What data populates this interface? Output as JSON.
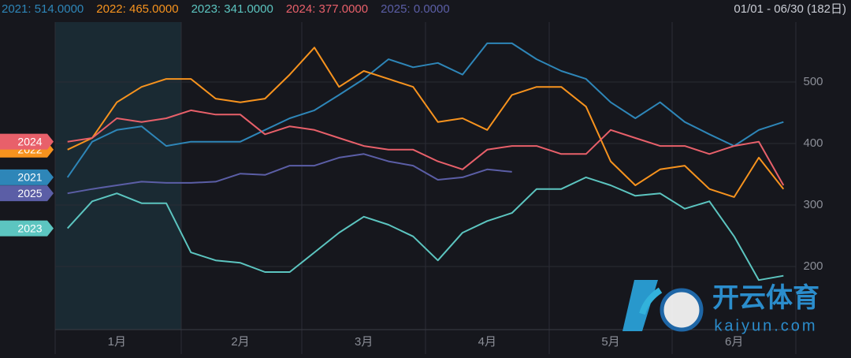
{
  "chart_data": {
    "type": "line",
    "range_label": "01/01 - 06/30 (182日)",
    "watermark": {
      "title": "开云体育",
      "subtitle": "kaiyun.com"
    },
    "categories": [
      null,
      null,
      "1月",
      null,
      null,
      null,
      null,
      "2月",
      null,
      null,
      null,
      null,
      "3月",
      null,
      null,
      null,
      null,
      "4月",
      null,
      null,
      null,
      null,
      "5月",
      null,
      null,
      null,
      null,
      "6月",
      null,
      null
    ],
    "ylim": [
      100,
      600
    ],
    "yticks": [
      200,
      300,
      400,
      500
    ],
    "grid": true,
    "series": [
      {
        "name": "2021",
        "legend": "2021: 514.0000",
        "color": "#2e86b8",
        "values": [
          345,
          403,
          422,
          428,
          396,
          403,
          403,
          403,
          422,
          441,
          454,
          479,
          505,
          537,
          524,
          531,
          512,
          563,
          563,
          537,
          518,
          505,
          467,
          441,
          467,
          435,
          415,
          396,
          422,
          435
        ]
      },
      {
        "name": "2022",
        "legend": "2022: 465.0000",
        "color": "#f7931e",
        "values": [
          390,
          409,
          467,
          492,
          505,
          505,
          473,
          467,
          473,
          512,
          556,
          492,
          518,
          505,
          492,
          435,
          441,
          422,
          479,
          492,
          492,
          460,
          371,
          332,
          358,
          364,
          326,
          313,
          377,
          326
        ]
      },
      {
        "name": "2023",
        "legend": "2023: 341.0000",
        "color": "#5cc5c0",
        "values": [
          262,
          306,
          319,
          303,
          303,
          223,
          210,
          206,
          191,
          191,
          223,
          255,
          281,
          268,
          249,
          210,
          255,
          274,
          287,
          326,
          326,
          345,
          332,
          315,
          319,
          294,
          306,
          249,
          178,
          185
        ]
      },
      {
        "name": "2024",
        "legend": "2024: 377.0000",
        "color": "#e8606a",
        "values": [
          403,
          409,
          441,
          435,
          441,
          454,
          447,
          447,
          415,
          428,
          422,
          409,
          396,
          390,
          390,
          371,
          358,
          390,
          396,
          396,
          383,
          383,
          422,
          409,
          396,
          396,
          383,
          396,
          403,
          332
        ]
      },
      {
        "name": "2025",
        "legend": "2025: 0.0000",
        "color": "#5b5ea6",
        "values": [
          319,
          326,
          332,
          338,
          336,
          336,
          338,
          351,
          349,
          364,
          364,
          377,
          383,
          371,
          364,
          341,
          345,
          358,
          354,
          null,
          null,
          null,
          null,
          null,
          null,
          null,
          null,
          null,
          null,
          null
        ]
      }
    ]
  }
}
